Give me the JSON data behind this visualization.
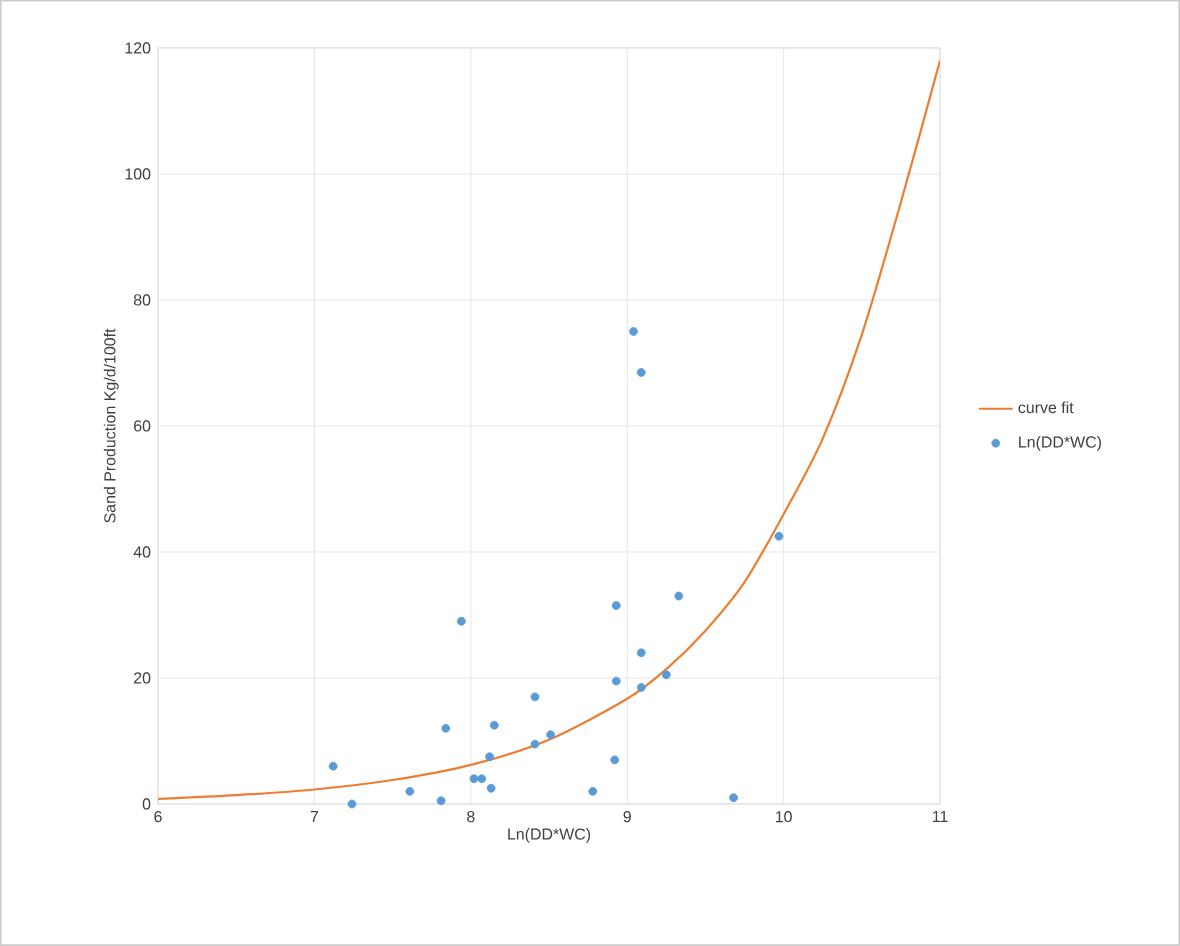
{
  "chart_data": {
    "type": "scatter",
    "xlabel": "Ln(DD*WC)",
    "ylabel": "Sand Production Kg/d/100ft",
    "xlim": [
      6,
      11
    ],
    "xticks": [
      6,
      7,
      8,
      9,
      10,
      11
    ],
    "ylim": [
      0,
      120
    ],
    "yticks": [
      0,
      20,
      40,
      60,
      80,
      100,
      120
    ],
    "grid": true,
    "legend": "right",
    "series": [
      {
        "name": "curve fit",
        "type": "line",
        "color": "#ed7d31",
        "marker": "none",
        "line_style": "solid",
        "x": [
          6,
          6.5,
          7,
          7.5,
          8,
          8.5,
          9,
          9.25,
          9.5,
          9.75,
          10,
          10.25,
          10.5,
          10.75,
          11
        ],
        "values": [
          0.8,
          1.4,
          2.3,
          3.8,
          6.2,
          10.2,
          16.7,
          21.4,
          27.5,
          35.2,
          46,
          58,
          74.5,
          95.5,
          118
        ]
      },
      {
        "name": "Ln(DD*WC)",
        "color": "#5b9bd5",
        "marker": "circle",
        "x": [
          7.12,
          7.24,
          7.61,
          7.84,
          7.81,
          7.94,
          8.02,
          8.07,
          8.13,
          8.12,
          8.15,
          8.41,
          8.41,
          8.51,
          8.78,
          8.92,
          8.93,
          8.93,
          9.04,
          9.09,
          9.09,
          9.09,
          9.25,
          9.33,
          9.68,
          9.97
        ],
        "values": [
          6,
          0,
          2,
          12,
          0.5,
          29,
          4,
          4,
          2.5,
          7.5,
          12.5,
          9.5,
          17,
          11,
          2,
          7,
          19.5,
          31.5,
          75,
          68.5,
          24,
          18.5,
          20.5,
          33,
          1,
          42.5
        ]
      }
    ]
  }
}
